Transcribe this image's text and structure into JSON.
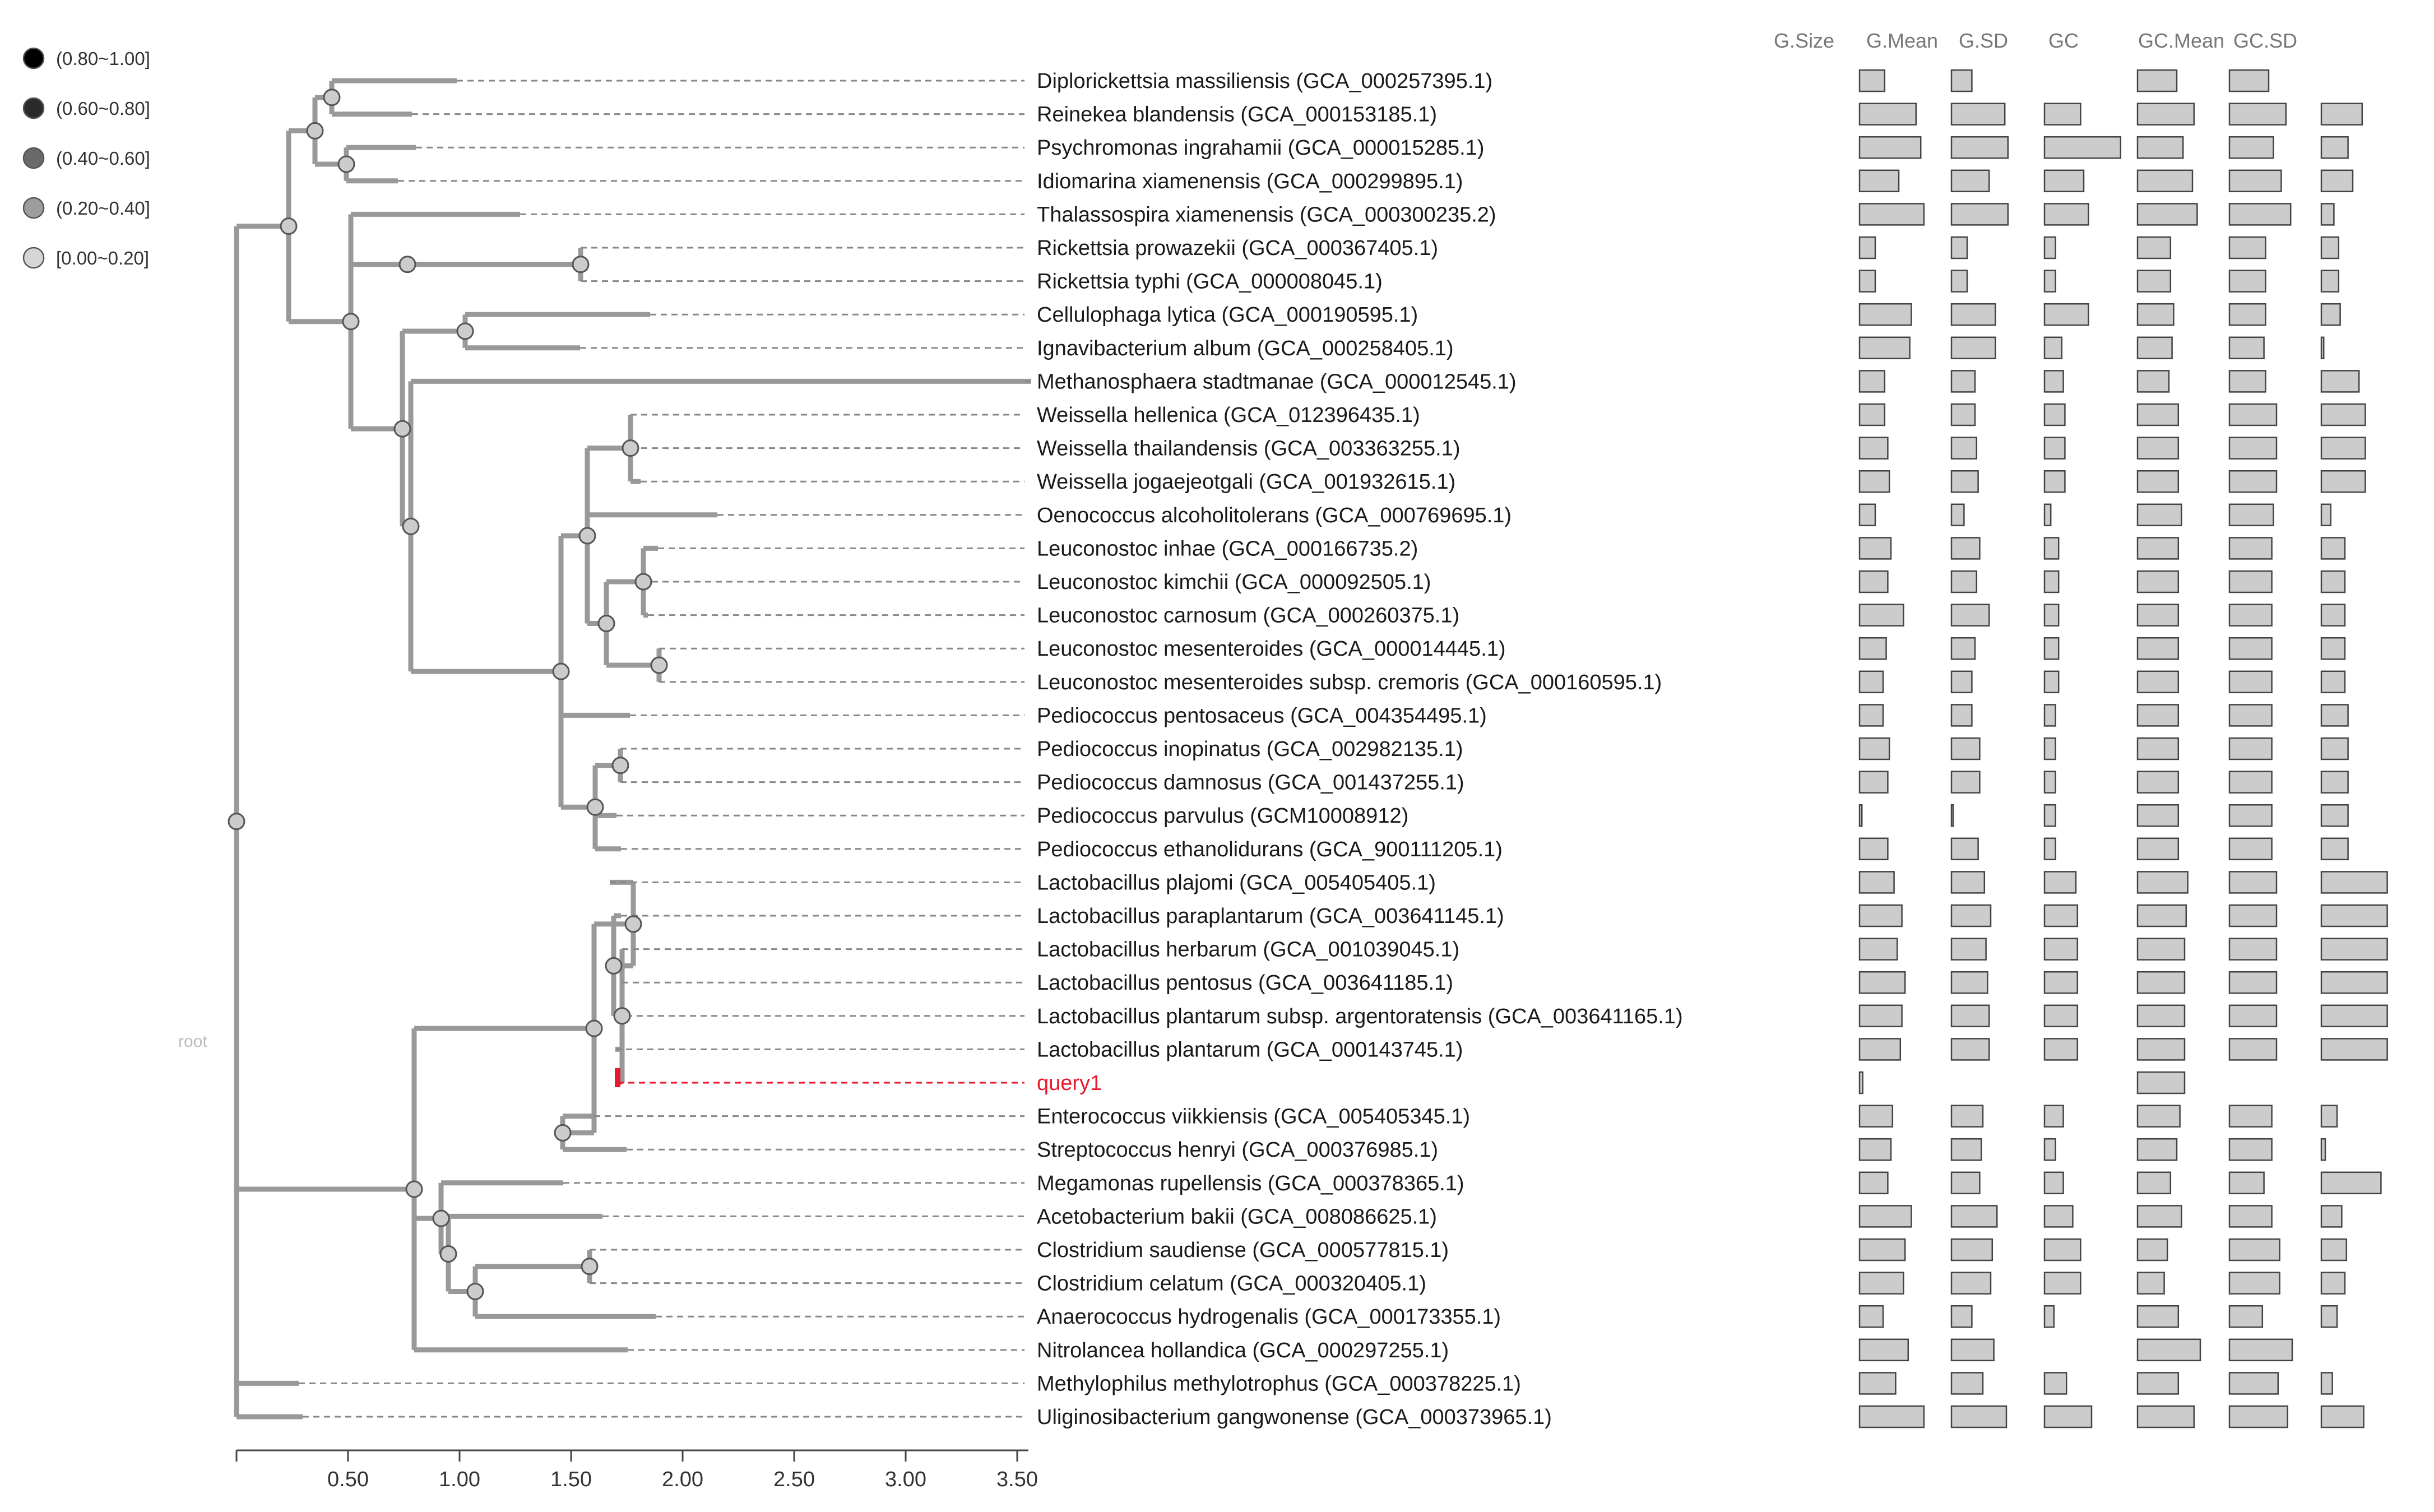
{
  "legend": [
    {
      "label": "(0.80~1.00]",
      "color": "#000000"
    },
    {
      "label": "(0.60~0.80]",
      "color": "#2b2b2b"
    },
    {
      "label": "(0.40~0.60]",
      "color": "#6a6a6a"
    },
    {
      "label": "(0.20~0.40]",
      "color": "#9d9d9d"
    },
    {
      "label": "[0.00~0.20]",
      "color": "#d6d6d6"
    }
  ],
  "root_label": "root",
  "axis": {
    "ticks": [
      "0.50",
      "1.00",
      "1.50",
      "2.00",
      "2.50",
      "3.00",
      "3.50"
    ]
  },
  "columns": [
    "G.Size",
    "G.Mean",
    "G.SD",
    "GC",
    "GC.Mean",
    "GC.SD"
  ],
  "colors": {
    "branch": "#999999",
    "node": "#cccccc",
    "bar_fill": "#cccccc",
    "bar_stroke": "#444444",
    "query": "#e8192c",
    "dash": "#888888"
  },
  "leaves": [
    {
      "label": "Diplorickettsia massiliensis (GCA_000257395.1)",
      "bars": [
        0.32,
        0.26,
        0,
        0.5,
        0.5,
        0
      ]
    },
    {
      "label": "Reinekea blandensis (GCA_000153185.1)",
      "bars": [
        0.72,
        0.68,
        0.46,
        0.72,
        0.72,
        0.52
      ]
    },
    {
      "label": "Psychromonas ingrahamii (GCA_000015285.1)",
      "bars": [
        0.78,
        0.72,
        0.97,
        0.58,
        0.56,
        0.34
      ]
    },
    {
      "label": "Idiomarina xiamenensis (GCA_000299895.1)",
      "bars": [
        0.5,
        0.48,
        0.5,
        0.7,
        0.66,
        0.4
      ]
    },
    {
      "label": "Thalassospira xiamenensis (GCA_000300235.2)",
      "bars": [
        0.82,
        0.72,
        0.56,
        0.76,
        0.78,
        0.16
      ]
    },
    {
      "label": "Rickettsia prowazekii (GCA_000367405.1)",
      "bars": [
        0.2,
        0.2,
        0.14,
        0.42,
        0.46,
        0.22
      ]
    },
    {
      "label": "Rickettsia typhi (GCA_000008045.1)",
      "bars": [
        0.2,
        0.2,
        0.14,
        0.42,
        0.46,
        0.22
      ]
    },
    {
      "label": "Cellulophaga lytica (GCA_000190595.1)",
      "bars": [
        0.66,
        0.56,
        0.56,
        0.46,
        0.46,
        0.24
      ]
    },
    {
      "label": "Ignavibacterium album (GCA_000258405.1)",
      "bars": [
        0.64,
        0.56,
        0.22,
        0.44,
        0.44,
        0.03
      ]
    },
    {
      "label": "Methanosphaera stadtmanae (GCA_000012545.1)",
      "bars": [
        0.32,
        0.3,
        0.24,
        0.4,
        0.46,
        0.48
      ]
    },
    {
      "label": "Weissella hellenica (GCA_012396435.1)",
      "bars": [
        0.32,
        0.3,
        0.26,
        0.52,
        0.6,
        0.56
      ]
    },
    {
      "label": "Weissella thailandensis (GCA_003363255.1)",
      "bars": [
        0.36,
        0.32,
        0.26,
        0.52,
        0.6,
        0.56
      ]
    },
    {
      "label": "Weissella jogaejeotgali (GCA_001932615.1)",
      "bars": [
        0.38,
        0.34,
        0.26,
        0.52,
        0.6,
        0.56
      ]
    },
    {
      "label": "Oenococcus alcoholitolerans (GCA_000769695.1)",
      "bars": [
        0.2,
        0.16,
        0.08,
        0.56,
        0.56,
        0.12
      ]
    },
    {
      "label": "Leuconostoc inhae (GCA_000166735.2)",
      "bars": [
        0.4,
        0.36,
        0.18,
        0.52,
        0.54,
        0.3
      ]
    },
    {
      "label": "Leuconostoc kimchii (GCA_000092505.1)",
      "bars": [
        0.36,
        0.32,
        0.18,
        0.52,
        0.54,
        0.3
      ]
    },
    {
      "label": "Leuconostoc carnosum (GCA_000260375.1)",
      "bars": [
        0.56,
        0.48,
        0.18,
        0.52,
        0.54,
        0.3
      ]
    },
    {
      "label": "Leuconostoc mesenteroides (GCA_000014445.1)",
      "bars": [
        0.34,
        0.3,
        0.18,
        0.52,
        0.54,
        0.3
      ]
    },
    {
      "label": "Leuconostoc mesenteroides subsp. cremoris (GCA_000160595.1)",
      "bars": [
        0.3,
        0.26,
        0.18,
        0.52,
        0.54,
        0.3
      ]
    },
    {
      "label": "Pediococcus pentosaceus (GCA_004354495.1)",
      "bars": [
        0.3,
        0.26,
        0.14,
        0.52,
        0.54,
        0.34
      ]
    },
    {
      "label": "Pediococcus inopinatus (GCA_002982135.1)",
      "bars": [
        0.38,
        0.36,
        0.14,
        0.52,
        0.54,
        0.34
      ]
    },
    {
      "label": "Pediococcus damnosus (GCA_001437255.1)",
      "bars": [
        0.36,
        0.36,
        0.14,
        0.52,
        0.54,
        0.34
      ]
    },
    {
      "label": "Pediococcus parvulus (GCM10008912)",
      "bars": [
        0.03,
        0.02,
        0.14,
        0.52,
        0.54,
        0.34
      ]
    },
    {
      "label": "Pediococcus ethanolidurans (GCA_900111205.1)",
      "bars": [
        0.36,
        0.34,
        0.14,
        0.52,
        0.54,
        0.34
      ]
    },
    {
      "label": "Lactobacillus plajomi (GCA_005405405.1)",
      "bars": [
        0.44,
        0.42,
        0.4,
        0.64,
        0.6,
        0.84
      ]
    },
    {
      "label": "Lactobacillus paraplantarum (GCA_003641145.1)",
      "bars": [
        0.54,
        0.5,
        0.42,
        0.62,
        0.6,
        0.84
      ]
    },
    {
      "label": "Lactobacillus herbarum (GCA_001039045.1)",
      "bars": [
        0.48,
        0.44,
        0.42,
        0.6,
        0.6,
        0.84
      ]
    },
    {
      "label": "Lactobacillus pentosus (GCA_003641185.1)",
      "bars": [
        0.58,
        0.46,
        0.42,
        0.6,
        0.6,
        0.84
      ]
    },
    {
      "label": "Lactobacillus plantarum subsp. argentoratensis (GCA_003641165.1)",
      "bars": [
        0.54,
        0.48,
        0.42,
        0.6,
        0.6,
        0.84
      ]
    },
    {
      "label": "Lactobacillus plantarum (GCA_000143745.1)",
      "bars": [
        0.52,
        0.48,
        0.42,
        0.6,
        0.6,
        0.84
      ]
    },
    {
      "label": "query1",
      "bars": [
        0.04,
        0,
        0,
        0.6,
        0,
        0
      ],
      "query": true
    },
    {
      "label": "Enterococcus viikkiensis (GCA_005405345.1)",
      "bars": [
        0.42,
        0.4,
        0.24,
        0.54,
        0.54,
        0.2
      ]
    },
    {
      "label": "Streptococcus henryi (GCA_000376985.1)",
      "bars": [
        0.4,
        0.38,
        0.14,
        0.5,
        0.54,
        0.05
      ]
    },
    {
      "label": "Megamonas rupellensis (GCA_000378365.1)",
      "bars": [
        0.36,
        0.36,
        0.24,
        0.42,
        0.44,
        0.76
      ]
    },
    {
      "label": "Acetobacterium bakii (GCA_008086625.1)",
      "bars": [
        0.66,
        0.58,
        0.36,
        0.56,
        0.54,
        0.26
      ]
    },
    {
      "label": "Clostridium saudiense (GCA_000577815.1)",
      "bars": [
        0.58,
        0.52,
        0.46,
        0.38,
        0.64,
        0.32
      ]
    },
    {
      "label": "Clostridium celatum (GCA_000320405.1)",
      "bars": [
        0.56,
        0.5,
        0.46,
        0.34,
        0.64,
        0.3
      ]
    },
    {
      "label": "Anaerococcus hydrogenalis (GCA_000173355.1)",
      "bars": [
        0.3,
        0.26,
        0.12,
        0.52,
        0.42,
        0.2
      ]
    },
    {
      "label": "Nitrolancea hollandica (GCA_000297255.1)",
      "bars": [
        0.62,
        0.54,
        0,
        0.8,
        0.8,
        0
      ]
    },
    {
      "label": "Methylophilus methylotrophus (GCA_000378225.1)",
      "bars": [
        0.46,
        0.4,
        0.28,
        0.52,
        0.62,
        0.14
      ]
    },
    {
      "label": "Uliginosibacterium gangwonense (GCA_000373965.1)",
      "bars": [
        0.82,
        0.7,
        0.6,
        0.72,
        0.74,
        0.54
      ]
    }
  ]
}
